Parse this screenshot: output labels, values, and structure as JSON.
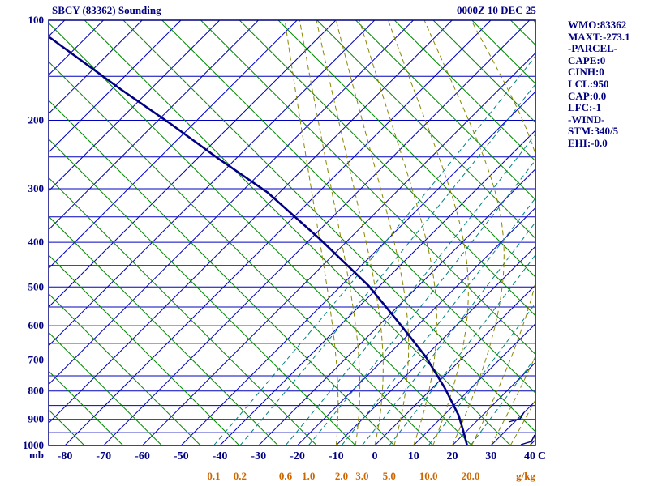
{
  "header": {
    "title": "SBCY (83362) Sounding",
    "datetime": "0000Z 10 DEC 25"
  },
  "stats_panel": {
    "lines": [
      "WMO:83362",
      "MAXT:-273.1",
      "-PARCEL-",
      "CAPE:0",
      "CINH:0",
      "LCL:950",
      "CAP:0.0",
      "LFC:-1",
      "-WIND-",
      "STM:340/5",
      "EHI:-0.0"
    ]
  },
  "chart_data": {
    "type": "skewt_log_p_sounding",
    "title": "SBCY (83362) Sounding",
    "subtitle": "0000Z 10 DEC 25",
    "pressure_axis": {
      "unit_label": "mb",
      "tick_labels": [
        100,
        200,
        300,
        400,
        500,
        600,
        700,
        800,
        900,
        1000
      ],
      "gridline_step_mb": 50,
      "range": [
        100,
        1000
      ],
      "scale": "p^kappa (kappa=0.2859)"
    },
    "temperature_axis": {
      "unit_label": "C",
      "tick_labels": [
        -80,
        -70,
        -60,
        -50,
        -40,
        -30,
        -20,
        -10,
        0,
        10,
        20,
        30,
        40
      ],
      "isotherm_step_c": 10,
      "range": [
        -80,
        40
      ]
    },
    "mixing_ratio_lines": {
      "unit_label": "g/kg",
      "values": [
        0.1,
        0.2,
        0.6,
        1.0,
        2.0,
        3.0,
        5.0,
        10.0,
        20.0
      ]
    },
    "moist_adiabats": {
      "surface_temps_c": [
        -10,
        -5,
        0,
        5,
        10,
        15,
        20,
        25,
        30,
        35,
        40
      ]
    },
    "sounding_trace": [
      {
        "p": 114,
        "t": -189.3
      },
      {
        "p": 164,
        "t": -157.5
      },
      {
        "p": 204,
        "t": -136.1
      },
      {
        "p": 253,
        "t": -114.3
      },
      {
        "p": 306,
        "t": -93.2
      },
      {
        "p": 394,
        "t": -67.4
      },
      {
        "p": 497,
        "t": -42.9
      },
      {
        "p": 592,
        "t": -25.5
      },
      {
        "p": 690,
        "t": -9.8
      },
      {
        "p": 789,
        "t": 3.1
      },
      {
        "p": 885,
        "t": 13.8
      },
      {
        "p": 946,
        "t": 19.3
      },
      {
        "p": 996,
        "t": 23.5
      }
    ],
    "colors": {
      "grid_blue": "#0000bf",
      "dry_adiabat_green": "#008800",
      "mixing_ratio_teal": "#008080",
      "moist_adiabat_olive": "#888800",
      "trace_navy": "#000080",
      "text_navy": "#000080",
      "mixing_label_orange": "#cc6600",
      "background": "#ffffff"
    },
    "legend": "solid blue diagonals = isotherms, green solid = dry adiabats, teal dashed = mixing ratio, olive dashed = moist adiabats, thick navy = sounding trace"
  }
}
